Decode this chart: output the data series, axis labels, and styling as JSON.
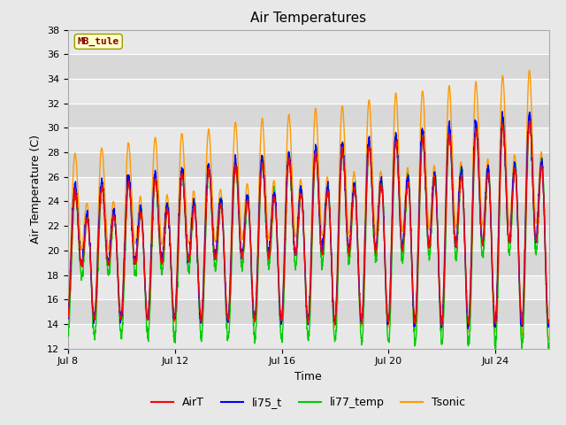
{
  "title": "Air Temperatures",
  "xlabel": "Time",
  "ylabel": "Air Temperature (C)",
  "ylim": [
    12,
    38
  ],
  "yticks": [
    12,
    14,
    16,
    18,
    20,
    22,
    24,
    26,
    28,
    30,
    32,
    34,
    36,
    38
  ],
  "xtick_labels": [
    "Jul 8",
    "Jul 12",
    "Jul 16",
    "Jul 20",
    "Jul 24"
  ],
  "xtick_positions": [
    0,
    4,
    8,
    12,
    16
  ],
  "series_colors": {
    "AirT": "#ff0000",
    "li75_t": "#0000ff",
    "li77_temp": "#00cc00",
    "Tsonic": "#ff9900"
  },
  "annotation_text": "MB_tule",
  "annotation_bg": "#ffffcc",
  "annotation_fg": "#880000",
  "plot_bg": "#ffffff",
  "fig_bg": "#e8e8e8",
  "band_color_light": "#e8e8e8",
  "band_color_dark": "#d8d8d8",
  "n_days": 18,
  "legend_labels": [
    "AirT",
    "li75_t",
    "li77_temp",
    "Tsonic"
  ]
}
